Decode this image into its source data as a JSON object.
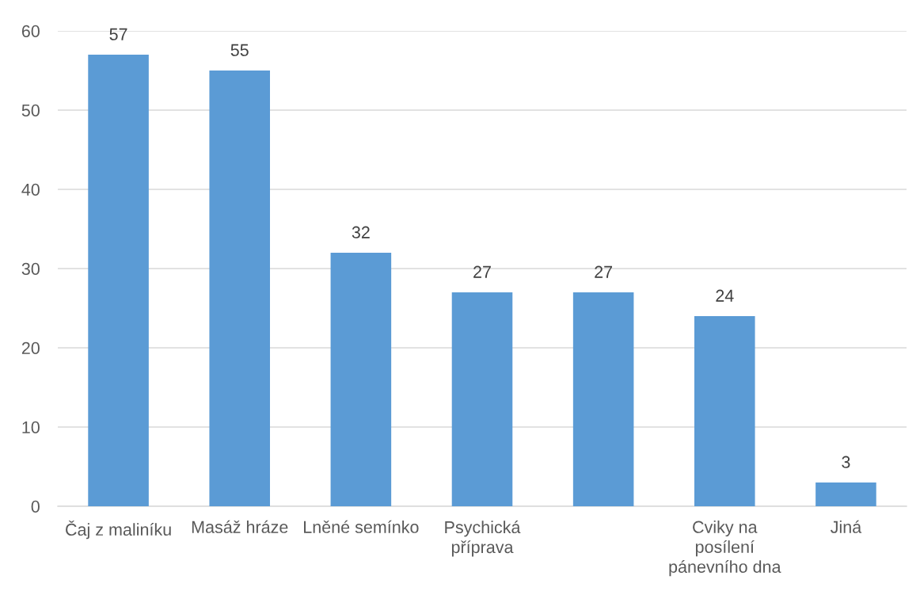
{
  "chart_data": {
    "type": "bar",
    "categories": [
      "Čaj z maliníku",
      "Masáž hráze",
      "Lněné semínko",
      "Psychická\npříprava",
      null,
      "Cviky na\nposílení\npánevního dna",
      "Jiná"
    ],
    "values": [
      57,
      55,
      32,
      27,
      27,
      24,
      3
    ],
    "color": "#5b9bd5",
    "ylim": [
      0,
      60
    ],
    "yticks": [
      0,
      10,
      20,
      30,
      40,
      50,
      60
    ],
    "grid": "y",
    "data_labels": true
  }
}
